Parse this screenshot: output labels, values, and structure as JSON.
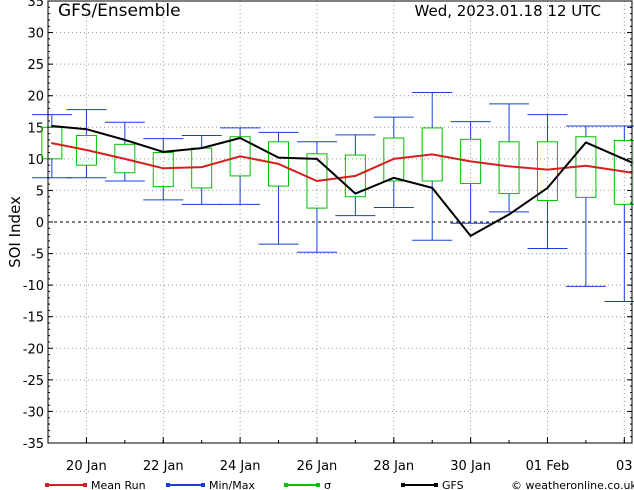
{
  "header": {
    "left_title": "GFS/Ensemble",
    "right_title": "Wed, 2023.01.18   12 UTC"
  },
  "footer": {
    "legend": [
      {
        "label": "Mean Run",
        "color": "#d62020"
      },
      {
        "label": "Min/Max",
        "color": "#1a3fd6"
      },
      {
        "label": "σ",
        "color": "#00c000"
      },
      {
        "label": "GFS",
        "color": "#000000"
      }
    ],
    "credit": "© weatheronline.co.uk"
  },
  "chart_data": {
    "type": "box-line",
    "ylabel": "SOI Index",
    "ylim": [
      -35,
      35
    ],
    "yticks": [
      35,
      30,
      25,
      20,
      15,
      10,
      5,
      0,
      -5,
      -10,
      -15,
      -20,
      -25,
      -30,
      -35
    ],
    "xlim": [
      19.0,
      34.2
    ],
    "xticks": [
      {
        "x": 20,
        "label": "20 Jan"
      },
      {
        "x": 22,
        "label": "22 Jan"
      },
      {
        "x": 24,
        "label": "24 Jan"
      },
      {
        "x": 26,
        "label": "26 Jan"
      },
      {
        "x": 28,
        "label": "28 Jan"
      },
      {
        "x": 30,
        "label": "30 Jan"
      },
      {
        "x": 32,
        "label": "01 Feb"
      },
      {
        "x": 34,
        "label": "03"
      }
    ],
    "zero_line": true,
    "grid": "dotted",
    "ensemble": [
      {
        "x": 19.1,
        "min": 7.0,
        "max": 17.0,
        "sd_low": 10.0,
        "sd_high": 15.0
      },
      {
        "x": 20.0,
        "min": 7.0,
        "max": 17.8,
        "sd_low": 9.0,
        "sd_high": 13.7
      },
      {
        "x": 21.0,
        "min": 6.5,
        "max": 15.8,
        "sd_low": 7.8,
        "sd_high": 12.3
      },
      {
        "x": 22.0,
        "min": 3.5,
        "max": 13.2,
        "sd_low": 5.6,
        "sd_high": 11.0
      },
      {
        "x": 23.0,
        "min": 2.8,
        "max": 13.7,
        "sd_low": 5.4,
        "sd_high": 11.7
      },
      {
        "x": 24.0,
        "min": 2.8,
        "max": 14.9,
        "sd_low": 7.3,
        "sd_high": 13.5
      },
      {
        "x": 25.0,
        "min": -3.5,
        "max": 14.2,
        "sd_low": 5.7,
        "sd_high": 12.7
      },
      {
        "x": 26.0,
        "min": -4.8,
        "max": 12.7,
        "sd_low": 2.2,
        "sd_high": 10.8
      },
      {
        "x": 27.0,
        "min": 1.0,
        "max": 13.8,
        "sd_low": 4.0,
        "sd_high": 10.6
      },
      {
        "x": 28.0,
        "min": 2.3,
        "max": 16.6,
        "sd_low": 6.5,
        "sd_high": 13.3
      },
      {
        "x": 29.0,
        "min": -2.9,
        "max": 20.5,
        "sd_low": 6.5,
        "sd_high": 14.9
      },
      {
        "x": 30.0,
        "min": -0.2,
        "max": 15.9,
        "sd_low": 6.1,
        "sd_high": 13.1
      },
      {
        "x": 31.0,
        "min": 1.6,
        "max": 18.7,
        "sd_low": 4.5,
        "sd_high": 12.7
      },
      {
        "x": 32.0,
        "min": -4.2,
        "max": 17.0,
        "sd_low": 3.4,
        "sd_high": 12.7
      },
      {
        "x": 33.0,
        "min": -10.2,
        "max": 15.2,
        "sd_low": 3.9,
        "sd_high": 13.5
      },
      {
        "x": 34.0,
        "min": -12.6,
        "max": 15.2,
        "sd_low": 2.8,
        "sd_high": 12.9
      }
    ],
    "series": [
      {
        "name": "Mean Run",
        "color": "#d62020",
        "x": [
          19.1,
          20.0,
          21.0,
          22.0,
          23.0,
          24.0,
          25.0,
          26.0,
          27.0,
          28.0,
          29.0,
          30.0,
          31.0,
          32.0,
          33.0,
          34.2
        ],
        "y": [
          12.5,
          11.4,
          10.0,
          8.5,
          8.7,
          10.4,
          9.2,
          6.5,
          7.3,
          10.0,
          10.7,
          9.6,
          8.8,
          8.3,
          8.9,
          7.8
        ]
      },
      {
        "name": "GFS",
        "color": "#000000",
        "x": [
          19.1,
          20.0,
          21.0,
          22.0,
          23.0,
          24.0,
          25.0,
          26.0,
          27.0,
          28.0,
          29.0,
          30.0,
          31.0,
          32.0,
          33.0,
          34.2
        ],
        "y": [
          15.2,
          14.7,
          13.0,
          11.1,
          11.7,
          13.3,
          10.2,
          10.0,
          4.5,
          7.0,
          5.4,
          -2.2,
          1.2,
          5.4,
          12.6,
          9.4
        ]
      }
    ]
  }
}
